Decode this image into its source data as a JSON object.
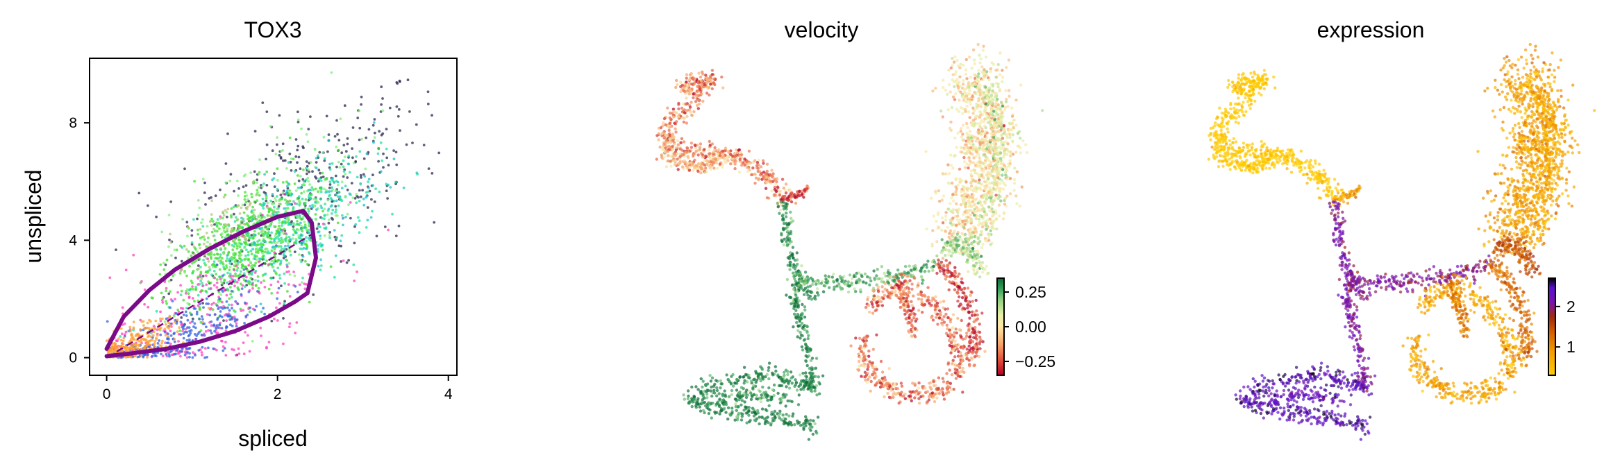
{
  "chart_data": [
    {
      "type": "scatter",
      "title": "TOX3",
      "xlabel": "spliced",
      "ylabel": "unspliced",
      "xlim": [
        -0.2,
        4.1
      ],
      "ylim": [
        -0.6,
        10.2
      ],
      "xticks": [
        0,
        2,
        4
      ],
      "yticks": [
        0,
        4,
        8
      ],
      "xtick_labels": [
        "0",
        "2",
        "4"
      ],
      "ytick_labels": [
        "0",
        "4",
        "8"
      ],
      "point_colors": [
        "#2a2a50",
        "#1fe0a0",
        "#3fe02a",
        "#7ff07a",
        "#ff40c0",
        "#3060e0",
        "#ff9f30",
        "#20c0d0",
        "#c0c080"
      ],
      "cluster_centers": [
        {
          "color": "#2a2a50",
          "x": 2.3,
          "y": 5.6,
          "sx": 0.75,
          "sy": 1.5,
          "weight": 0.14
        },
        {
          "color": "#1fe0a0",
          "x": 2.0,
          "y": 4.3,
          "sx": 0.5,
          "sy": 0.9,
          "weight": 0.16
        },
        {
          "color": "#3fe02a",
          "x": 1.6,
          "y": 3.8,
          "sx": 0.45,
          "sy": 0.9,
          "weight": 0.2
        },
        {
          "color": "#7ff07a",
          "x": 1.9,
          "y": 4.6,
          "sx": 0.55,
          "sy": 1.2,
          "weight": 0.1
        },
        {
          "color": "#ff40c0",
          "x": 1.1,
          "y": 1.2,
          "sx": 0.7,
          "sy": 1.2,
          "weight": 0.12
        },
        {
          "color": "#3060e0",
          "x": 0.9,
          "y": 0.7,
          "sx": 0.45,
          "sy": 0.5,
          "weight": 0.1
        },
        {
          "color": "#ff9f30",
          "x": 0.3,
          "y": 0.4,
          "sx": 0.25,
          "sy": 0.35,
          "weight": 0.1
        },
        {
          "color": "#20c0d0",
          "x": 2.4,
          "y": 4.8,
          "sx": 0.5,
          "sy": 0.9,
          "weight": 0.05
        },
        {
          "color": "#c0c080",
          "x": 1.4,
          "y": 4.3,
          "sx": 0.35,
          "sy": 0.5,
          "weight": 0.03
        }
      ],
      "fit_curve": {
        "color": "#7a0a88",
        "upper": [
          [
            0,
            0.3
          ],
          [
            0.2,
            1.4
          ],
          [
            0.5,
            2.3
          ],
          [
            0.8,
            3.0
          ],
          [
            1.2,
            3.7
          ],
          [
            1.6,
            4.3
          ],
          [
            2.0,
            4.8
          ],
          [
            2.3,
            5.0
          ],
          [
            2.4,
            4.6
          ],
          [
            2.45,
            3.4
          ],
          [
            2.35,
            2.2
          ]
        ],
        "lower": [
          [
            0,
            0.05
          ],
          [
            0.3,
            0.15
          ],
          [
            0.7,
            0.3
          ],
          [
            1.1,
            0.55
          ],
          [
            1.5,
            0.9
          ],
          [
            1.9,
            1.4
          ],
          [
            2.2,
            1.9
          ],
          [
            2.35,
            2.2
          ]
        ],
        "steady_state": [
          [
            0,
            0
          ],
          [
            2.4,
            4.2
          ]
        ]
      }
    },
    {
      "type": "scatter",
      "title": "velocity",
      "colormap": [
        "#b10026",
        "#e04b3a",
        "#f6a46a",
        "#fde6a8",
        "#e6f0a8",
        "#8ecf7f",
        "#2f9b57",
        "#0b6b35"
      ],
      "colorbar": {
        "ticks": [
          0.25,
          0.0,
          -0.25
        ],
        "tick_labels": [
          "0.25",
          "0.00",
          "−0.25"
        ],
        "vmin": -0.35,
        "vmax": 0.35
      }
    },
    {
      "type": "scatter",
      "title": "expression",
      "colormap": [
        "#ffcc00",
        "#f29a00",
        "#d35c00",
        "#a02a10",
        "#7a10b0",
        "#5a10d0",
        "#000000"
      ],
      "colorbar": {
        "ticks": [
          2,
          1
        ],
        "tick_labels": [
          "2",
          "1"
        ],
        "vmin": 0.3,
        "vmax": 2.7
      }
    }
  ]
}
